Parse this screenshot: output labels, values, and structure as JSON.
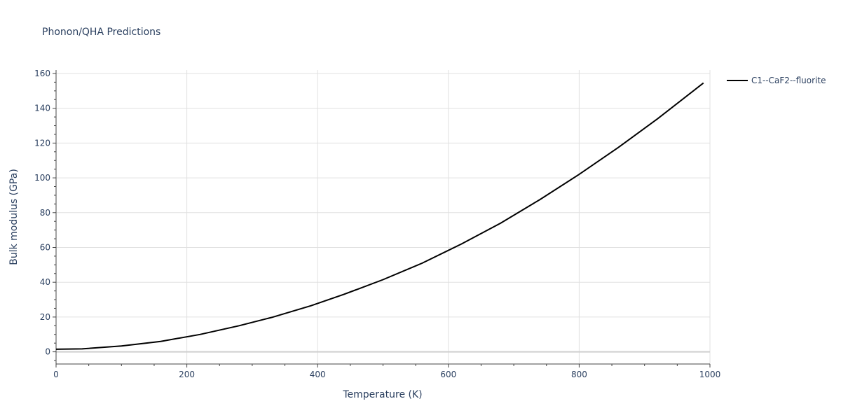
{
  "chart_data": {
    "type": "line",
    "title": "Phonon/QHA Predictions",
    "xlabel": "Temperature (K)",
    "ylabel": "Bulk modulus (GPa)",
    "xlim": [
      0,
      1000
    ],
    "ylim": [
      -7,
      162
    ],
    "x_ticks": [
      0,
      200,
      400,
      600,
      800,
      1000
    ],
    "y_ticks": [
      0,
      20,
      40,
      60,
      80,
      100,
      120,
      140,
      160
    ],
    "grid": true,
    "legend_position": "top-right",
    "series": [
      {
        "name": "C1--CaF2--fluorite",
        "color": "#000000",
        "x": [
          0,
          40,
          100,
          160,
          220,
          280,
          330,
          390,
          440,
          500,
          560,
          620,
          680,
          740,
          800,
          860,
          920,
          990
        ],
        "y": [
          1.5,
          1.7,
          3.4,
          6.0,
          10.0,
          15.0,
          19.8,
          26.5,
          33.0,
          41.5,
          51.0,
          62.0,
          74.0,
          87.5,
          102.0,
          117.5,
          134.0,
          154.5
        ]
      }
    ]
  }
}
